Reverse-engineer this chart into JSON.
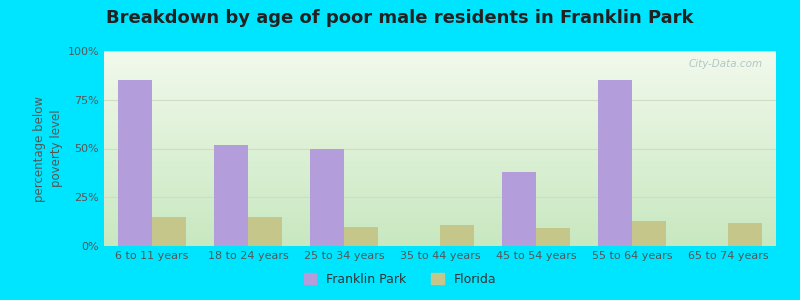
{
  "title": "Breakdown by age of poor male residents in Franklin Park",
  "categories": [
    "6 to 11 years",
    "18 to 24 years",
    "25 to 34 years",
    "35 to 44 years",
    "45 to 54 years",
    "55 to 64 years",
    "65 to 74 years"
  ],
  "franklin_park": [
    85,
    52,
    50,
    0,
    38,
    85,
    0
  ],
  "florida": [
    15,
    15,
    10,
    11,
    9,
    13,
    12
  ],
  "franklin_color": "#b39ddb",
  "florida_color": "#c5c68a",
  "background_outer": "#00e5ff",
  "ylabel": "percentage below\npoverty level",
  "ylim": [
    0,
    100
  ],
  "yticks": [
    0,
    25,
    50,
    75,
    100
  ],
  "ytick_labels": [
    "0%",
    "25%",
    "50%",
    "75%",
    "100%"
  ],
  "legend_fp": "Franklin Park",
  "legend_fl": "Florida",
  "title_fontsize": 13,
  "axis_label_fontsize": 8.5,
  "tick_fontsize": 8,
  "bar_width": 0.35,
  "watermark": "City-Data.com",
  "grid_color": "#d0ddc0",
  "grad_top": "#f2f9ec",
  "grad_bottom": "#c8e8c0"
}
